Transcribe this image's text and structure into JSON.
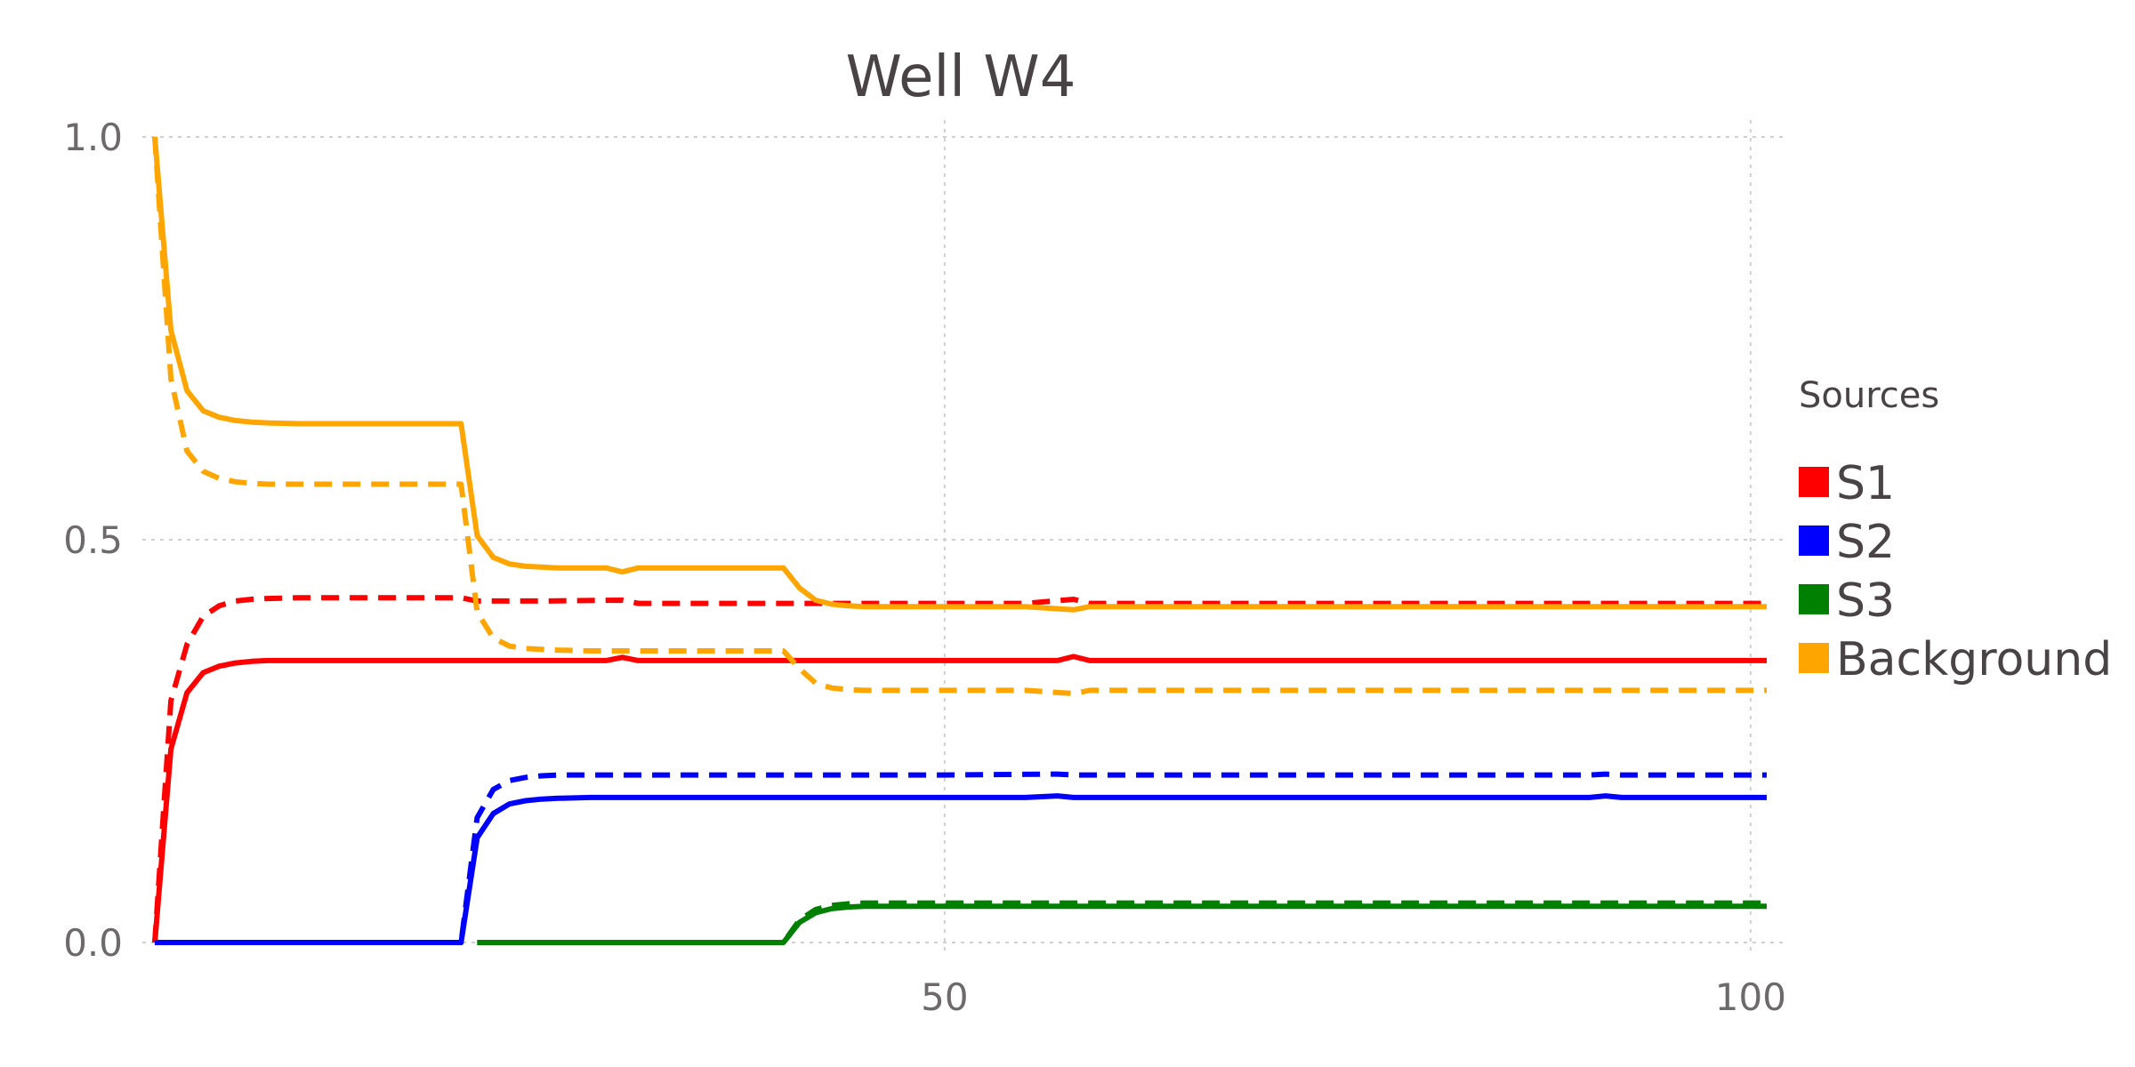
{
  "chart_data": {
    "type": "line",
    "title": "Well W4",
    "xlabel": "",
    "ylabel": "",
    "xlim": [
      1,
      101
    ],
    "ylim": [
      0,
      1
    ],
    "xticks": [
      50,
      100
    ],
    "yticks": [
      0,
      0.5,
      1
    ],
    "ytick_labels": [
      "0.0",
      "0.5",
      "1.0"
    ],
    "xtick_labels": [
      "50",
      "100"
    ],
    "grid": true,
    "legend": {
      "title": "Sources",
      "placement": "right",
      "entries": [
        {
          "name": "S1",
          "color": "#ff0000"
        },
        {
          "name": "S2",
          "color": "#0000ff"
        },
        {
          "name": "S3",
          "color": "#008000"
        },
        {
          "name": "Background",
          "color": "#ffa500"
        }
      ]
    },
    "series": [
      {
        "name": "S1",
        "color": "#ff0000",
        "style": "solid",
        "x": [
          1,
          2,
          3,
          4,
          5,
          6,
          7,
          8,
          10,
          15,
          20,
          25,
          29,
          30,
          31,
          35,
          40,
          45,
          50,
          55,
          57,
          58,
          59,
          60,
          70,
          80,
          90,
          101
        ],
        "y": [
          0,
          0.24,
          0.31,
          0.335,
          0.343,
          0.347,
          0.349,
          0.35,
          0.35,
          0.35,
          0.35,
          0.35,
          0.35,
          0.354,
          0.35,
          0.35,
          0.35,
          0.35,
          0.35,
          0.35,
          0.35,
          0.355,
          0.35,
          0.35,
          0.35,
          0.35,
          0.35,
          0.35
        ]
      },
      {
        "name": "S1",
        "color": "#ff0000",
        "style": "dashed",
        "x": [
          1,
          2,
          3,
          4,
          5,
          6,
          7,
          8,
          10,
          15,
          20,
          21,
          25,
          30,
          31,
          35,
          40,
          45,
          50,
          55,
          58,
          59,
          60,
          70,
          80,
          90,
          101
        ],
        "y": [
          0,
          0.3,
          0.37,
          0.405,
          0.418,
          0.424,
          0.426,
          0.427,
          0.428,
          0.428,
          0.428,
          0.424,
          0.424,
          0.425,
          0.421,
          0.421,
          0.421,
          0.421,
          0.421,
          0.421,
          0.426,
          0.421,
          0.421,
          0.421,
          0.421,
          0.421,
          0.421
        ]
      },
      {
        "name": "S2",
        "color": "#0000ff",
        "style": "solid",
        "x": [
          1,
          10,
          20,
          21,
          22,
          23,
          24,
          25,
          26,
          28,
          30,
          40,
          50,
          55,
          57,
          58,
          60,
          70,
          80,
          90,
          91,
          92,
          101
        ],
        "y": [
          0,
          0,
          0,
          0.13,
          0.16,
          0.172,
          0.176,
          0.178,
          0.179,
          0.18,
          0.18,
          0.18,
          0.18,
          0.18,
          0.182,
          0.18,
          0.18,
          0.18,
          0.18,
          0.18,
          0.182,
          0.18,
          0.18
        ]
      },
      {
        "name": "S2",
        "color": "#0000ff",
        "style": "dashed",
        "x": [
          1,
          10,
          20,
          21,
          22,
          23,
          24,
          25,
          26,
          28,
          30,
          40,
          50,
          57,
          58,
          60,
          70,
          80,
          90,
          91,
          92,
          101
        ],
        "y": [
          0,
          0,
          0,
          0.155,
          0.19,
          0.201,
          0.205,
          0.207,
          0.208,
          0.208,
          0.208,
          0.208,
          0.208,
          0.209,
          0.208,
          0.208,
          0.208,
          0.208,
          0.208,
          0.209,
          0.208,
          0.208
        ]
      },
      {
        "name": "S3",
        "color": "#008000",
        "style": "solid",
        "x": [
          21,
          30,
          40,
          41,
          42,
          43,
          44,
          45,
          46,
          48,
          50,
          60,
          70,
          80,
          90,
          101
        ],
        "y": [
          0,
          0,
          0,
          0.025,
          0.037,
          0.042,
          0.044,
          0.045,
          0.045,
          0.045,
          0.045,
          0.045,
          0.045,
          0.045,
          0.045,
          0.045
        ]
      },
      {
        "name": "S3",
        "color": "#008000",
        "style": "dashed",
        "x": [
          21,
          30,
          40,
          41,
          42,
          43,
          44,
          45,
          46,
          48,
          50,
          60,
          70,
          80,
          90,
          101
        ],
        "y": [
          0,
          0,
          0,
          0.028,
          0.041,
          0.046,
          0.048,
          0.049,
          0.049,
          0.049,
          0.049,
          0.049,
          0.049,
          0.049,
          0.049,
          0.049
        ]
      },
      {
        "name": "Background",
        "color": "#ffa500",
        "style": "solid",
        "x": [
          1,
          2,
          3,
          4,
          5,
          6,
          7,
          8,
          10,
          15,
          20,
          21,
          22,
          23,
          24,
          25,
          26,
          28,
          29,
          30,
          31,
          35,
          40,
          41,
          42,
          43,
          44,
          45,
          46,
          48,
          50,
          55,
          58,
          59,
          60,
          70,
          80,
          90,
          101
        ],
        "y": [
          1,
          0.76,
          0.685,
          0.66,
          0.652,
          0.648,
          0.646,
          0.645,
          0.644,
          0.644,
          0.644,
          0.505,
          0.478,
          0.47,
          0.467,
          0.466,
          0.465,
          0.465,
          0.465,
          0.46,
          0.465,
          0.465,
          0.465,
          0.44,
          0.425,
          0.42,
          0.418,
          0.417,
          0.417,
          0.417,
          0.417,
          0.417,
          0.413,
          0.417,
          0.417,
          0.417,
          0.417,
          0.417,
          0.417
        ]
      },
      {
        "name": "Background",
        "color": "#ffa500",
        "style": "dashed",
        "x": [
          1,
          2,
          3,
          4,
          5,
          6,
          7,
          8,
          10,
          15,
          20,
          21,
          22,
          23,
          24,
          25,
          26,
          28,
          30,
          35,
          40,
          41,
          42,
          43,
          44,
          45,
          46,
          48,
          50,
          55,
          58,
          59,
          60,
          70,
          80,
          90,
          101
        ],
        "y": [
          1,
          0.7,
          0.61,
          0.585,
          0.576,
          0.572,
          0.57,
          0.569,
          0.569,
          0.569,
          0.569,
          0.41,
          0.378,
          0.368,
          0.365,
          0.364,
          0.363,
          0.362,
          0.362,
          0.362,
          0.362,
          0.34,
          0.322,
          0.316,
          0.314,
          0.313,
          0.313,
          0.313,
          0.313,
          0.313,
          0.309,
          0.313,
          0.313,
          0.313,
          0.313,
          0.313,
          0.313
        ]
      }
    ]
  }
}
